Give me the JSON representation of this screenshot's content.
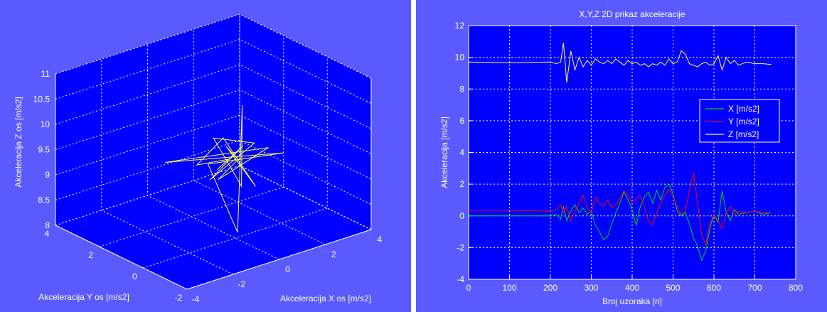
{
  "colors": {
    "figure_bg": "#5a5aff",
    "axes_bg": "#0000ff",
    "grid": "#ffffff",
    "text": "#ffffff",
    "x_series": "#00d000",
    "y_series": "#ff0000",
    "z_series": "#ffff40"
  },
  "chart_data": [
    {
      "type": "line3d",
      "title": "",
      "xlabel": "Akceleracija X os [m/s2]",
      "ylabel": "Akceleracija Y os [m/s2]",
      "zlabel": "Akceleracija Z os [m/s2]",
      "xlim": [
        -4,
        4
      ],
      "ylim": [
        -2,
        4
      ],
      "zlim": [
        8,
        11
      ],
      "x_ticks": [
        "-4",
        "-2",
        "0",
        "2",
        "4"
      ],
      "y_ticks": [
        "-2",
        "0",
        "2",
        "4"
      ],
      "z_ticks": [
        "8",
        "8.5",
        "9",
        "9.5",
        "10",
        "10.5",
        "11"
      ],
      "grid": true,
      "series": [
        {
          "color": "#ffff40",
          "points": [
            [
              0,
              0.3,
              9.5
            ],
            [
              -0.6,
              0.2,
              9.4
            ],
            [
              0.8,
              0.5,
              9.6
            ],
            [
              -1.2,
              -0.1,
              9.35
            ],
            [
              1.4,
              0.6,
              9.55
            ],
            [
              0.2,
              1.2,
              9.7
            ],
            [
              -0.3,
              -0.6,
              9.2
            ],
            [
              0.4,
              0.1,
              10.55
            ],
            [
              0.1,
              0.0,
              8.1
            ],
            [
              -0.8,
              0.4,
              9.5
            ],
            [
              1.9,
              -0.2,
              9.45
            ],
            [
              -2.1,
              1.0,
              9.6
            ],
            [
              2.2,
              0.8,
              9.3
            ],
            [
              -1.5,
              -0.8,
              9.55
            ],
            [
              0.5,
              0.4,
              9.4
            ],
            [
              -0.2,
              0.2,
              9.8
            ],
            [
              0.6,
              -0.3,
              9.0
            ],
            [
              1.0,
              1.6,
              9.5
            ],
            [
              -1.0,
              0.7,
              9.45
            ],
            [
              0.0,
              0.3,
              9.5
            ]
          ]
        }
      ]
    },
    {
      "type": "line",
      "title": "X,Y,Z 2D prikaz akceleracije",
      "xlabel": "Broj uzoraka [n]",
      "ylabel": "Akceleracija [m/s2]",
      "xlim": [
        0,
        800
      ],
      "ylim": [
        -4,
        12
      ],
      "x_ticks": [
        0,
        100,
        200,
        300,
        400,
        500,
        600,
        700,
        800
      ],
      "y_ticks": [
        -4,
        -2,
        0,
        2,
        4,
        6,
        8,
        10,
        12
      ],
      "grid": true,
      "legend": "upper-right",
      "x": [
        0,
        100,
        200,
        215,
        225,
        232,
        240,
        250,
        260,
        270,
        280,
        290,
        300,
        310,
        320,
        330,
        340,
        350,
        360,
        370,
        380,
        390,
        400,
        410,
        420,
        430,
        440,
        450,
        460,
        470,
        480,
        490,
        500,
        510,
        520,
        530,
        540,
        550,
        560,
        570,
        580,
        590,
        600,
        610,
        620,
        630,
        640,
        650,
        660,
        680,
        700,
        720,
        740
      ],
      "series": [
        {
          "name": "X [m/s2]",
          "color": "#00d000",
          "values": [
            0,
            0,
            0,
            0.1,
            -0.2,
            0.6,
            -0.3,
            0.3,
            0.7,
            0.2,
            0.5,
            0.1,
            0.3,
            -0.6,
            -1.0,
            -1.5,
            -1.3,
            -0.5,
            0.2,
            0.8,
            1.5,
            1.0,
            0.4,
            -0.6,
            0.6,
            1.2,
            1.5,
            0.8,
            1.6,
            1.0,
            1.8,
            2.0,
            1.4,
            0.3,
            0.0,
            0.2,
            -0.5,
            -1.4,
            -1.9,
            -2.8,
            -2.2,
            -0.8,
            0.1,
            -0.4,
            1.6,
            0.2,
            -0.3,
            0.4,
            0.1,
            0.2,
            0.3,
            0.1,
            0.2
          ]
        },
        {
          "name": "Y [m/s2]",
          "color": "#ff0000",
          "values": [
            0.35,
            0.35,
            0.3,
            0.4,
            0.7,
            0.2,
            0.6,
            -0.3,
            0.3,
            0.8,
            1.3,
            0.5,
            0.2,
            1.2,
            0.8,
            0.6,
            1.0,
            0.5,
            0.7,
            1.1,
            1.6,
            1.3,
            0.8,
            1.1,
            1.3,
            0.6,
            -0.4,
            -0.6,
            0.2,
            0.8,
            1.3,
            1.7,
            1.2,
            0.6,
            0.1,
            0.3,
            1.6,
            2.7,
            0.8,
            -1.2,
            -1.8,
            -0.5,
            0.1,
            -0.3,
            -0.8,
            0.2,
            0.6,
            0.1,
            0.3,
            0.2,
            0.3,
            0.2,
            0.2
          ]
        },
        {
          "name": "Z [m/s2]",
          "color": "#ffff40",
          "values": [
            9.7,
            9.65,
            9.7,
            9.6,
            9.7,
            10.9,
            8.4,
            10.4,
            9.2,
            10.0,
            9.4,
            9.8,
            9.5,
            9.9,
            9.7,
            9.6,
            9.8,
            9.6,
            9.9,
            9.7,
            9.5,
            9.8,
            9.6,
            9.7,
            9.5,
            9.6,
            9.4,
            9.6,
            9.5,
            9.7,
            9.5,
            9.9,
            9.6,
            9.7,
            10.4,
            10.2,
            9.6,
            9.5,
            9.4,
            9.6,
            9.7,
            9.5,
            9.6,
            10.1,
            9.2,
            10.0,
            9.6,
            9.8,
            9.5,
            9.7,
            9.6,
            9.6,
            9.55
          ]
        }
      ]
    }
  ]
}
